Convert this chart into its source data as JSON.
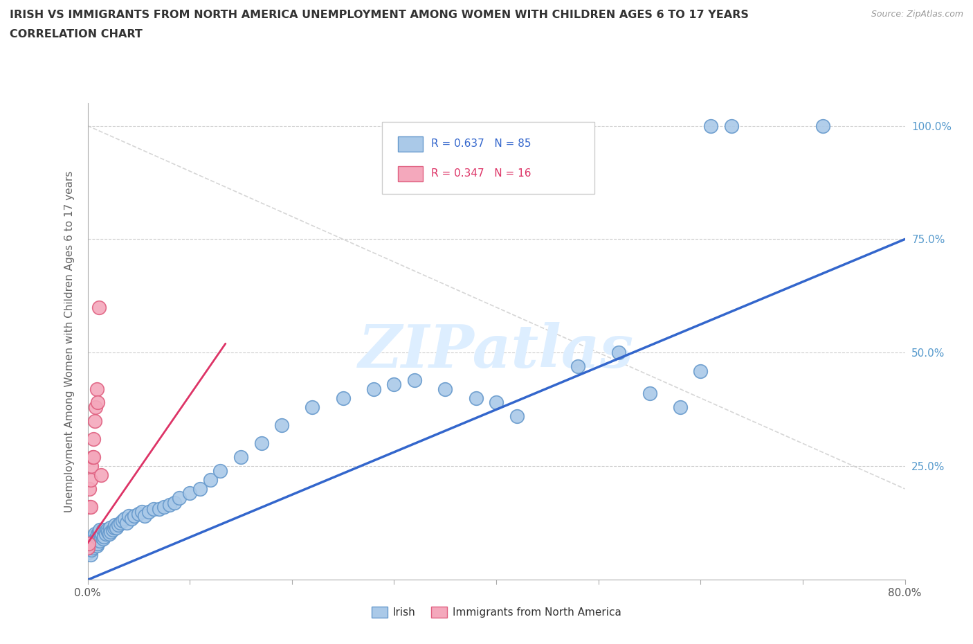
{
  "title_line1": "IRISH VS IMMIGRANTS FROM NORTH AMERICA UNEMPLOYMENT AMONG WOMEN WITH CHILDREN AGES 6 TO 17 YEARS",
  "title_line2": "CORRELATION CHART",
  "source_text": "Source: ZipAtlas.com",
  "ylabel": "Unemployment Among Women with Children Ages 6 to 17 years",
  "xlim": [
    0.0,
    0.8
  ],
  "ylim": [
    0.0,
    1.05
  ],
  "irish_color": "#aac9e8",
  "irish_edge_color": "#6699cc",
  "immigrants_color": "#f4a8bc",
  "immigrants_edge_color": "#e06080",
  "trendline_irish_color": "#3366cc",
  "trendline_immigrants_color": "#dd3366",
  "ref_line_color": "#cccccc",
  "watermark_color": "#ddeeff",
  "background_color": "#ffffff",
  "grid_color": "#cccccc",
  "right_tick_color": "#5599cc",
  "title_color": "#333333",
  "source_color": "#999999",
  "ylabel_color": "#666666"
}
